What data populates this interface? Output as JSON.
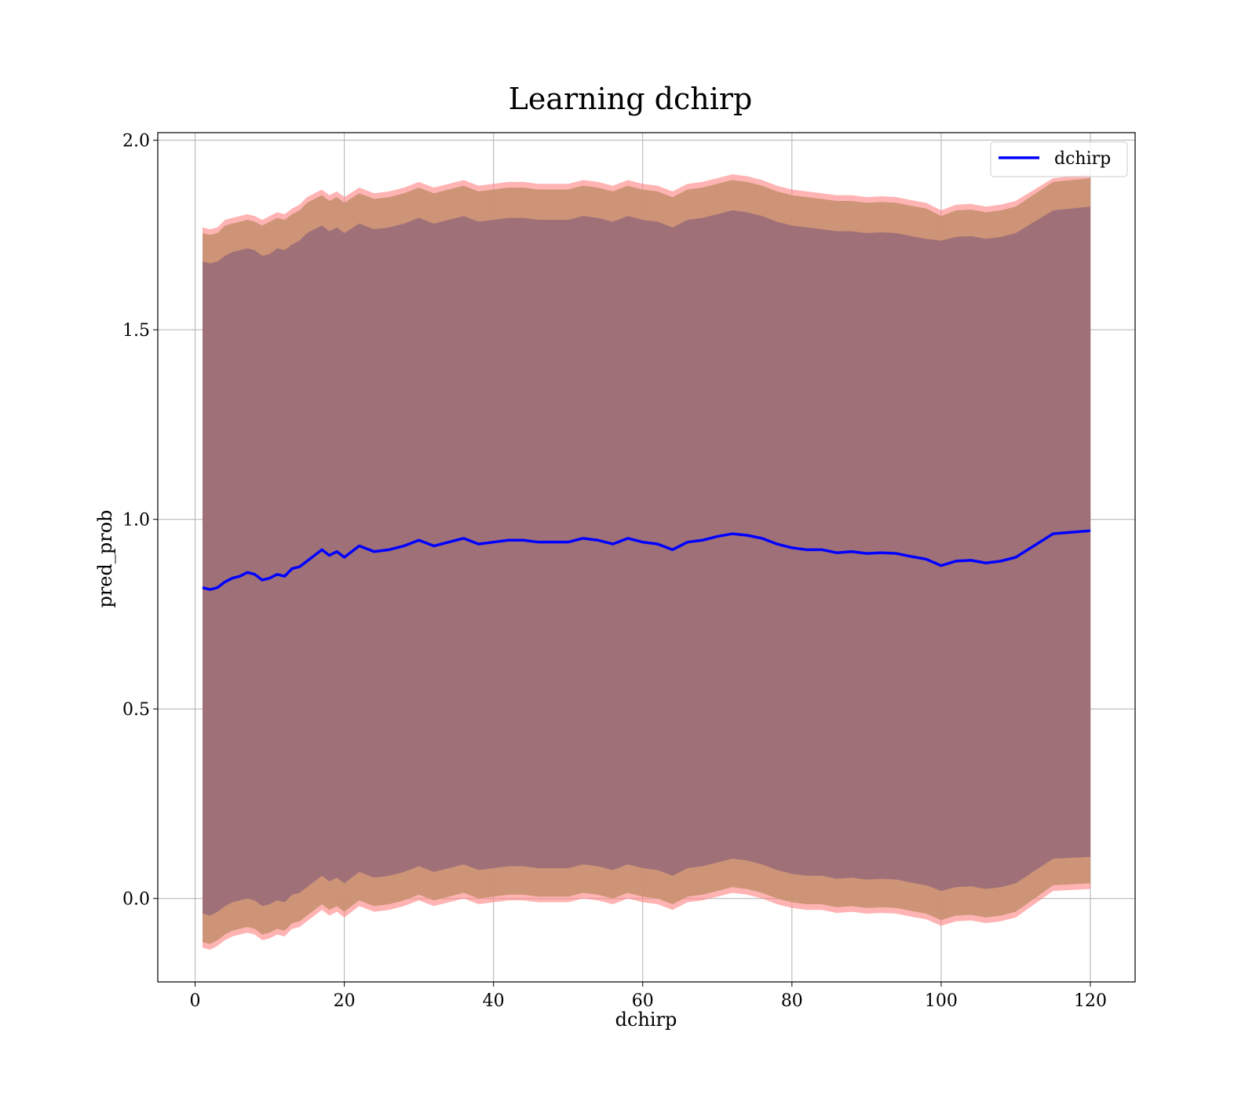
{
  "chart_data": {
    "type": "line",
    "title": "Learning dchirp",
    "xlabel": "dchirp",
    "ylabel": "pred_prob",
    "xlim": [
      -5,
      126
    ],
    "ylim": [
      -0.22,
      2.02
    ],
    "xticks": [
      0,
      20,
      40,
      60,
      80,
      100,
      120
    ],
    "xtick_labels": [
      "0",
      "20",
      "40",
      "60",
      "80",
      "100",
      "120"
    ],
    "yticks": [
      0.0,
      0.5,
      1.0,
      1.5,
      2.0
    ],
    "ytick_labels": [
      "0.0",
      "0.5",
      "1.0",
      "1.5",
      "2.0"
    ],
    "grid": true,
    "legend": {
      "position": "upper right",
      "entries": [
        "dchirp"
      ]
    },
    "colors": {
      "line": "#0000ff",
      "outer_band": "#ff8080",
      "middle_band": "#c89070",
      "inner_band": "#a07078"
    },
    "x": [
      1,
      2,
      3,
      4,
      5,
      6,
      7,
      8,
      9,
      10,
      11,
      12,
      13,
      14,
      15,
      16,
      17,
      18,
      19,
      20,
      22,
      24,
      26,
      28,
      30,
      32,
      34,
      36,
      38,
      40,
      42,
      44,
      46,
      48,
      50,
      52,
      54,
      56,
      58,
      60,
      62,
      64,
      66,
      68,
      70,
      72,
      74,
      76,
      78,
      80,
      82,
      84,
      86,
      88,
      90,
      92,
      94,
      96,
      98,
      100,
      102,
      104,
      106,
      108,
      110,
      115,
      120
    ],
    "series": [
      {
        "name": "dchirp",
        "role": "line",
        "values": [
          0.82,
          0.815,
          0.82,
          0.835,
          0.845,
          0.85,
          0.86,
          0.855,
          0.84,
          0.845,
          0.855,
          0.85,
          0.87,
          0.875,
          0.89,
          0.905,
          0.92,
          0.905,
          0.915,
          0.9,
          0.93,
          0.915,
          0.92,
          0.93,
          0.945,
          0.93,
          0.94,
          0.95,
          0.935,
          0.94,
          0.945,
          0.945,
          0.94,
          0.94,
          0.94,
          0.95,
          0.945,
          0.935,
          0.95,
          0.94,
          0.935,
          0.92,
          0.94,
          0.945,
          0.955,
          0.962,
          0.958,
          0.95,
          0.935,
          0.925,
          0.92,
          0.92,
          0.912,
          0.915,
          0.91,
          0.912,
          0.91,
          0.902,
          0.895,
          0.878,
          0.89,
          0.892,
          0.885,
          0.89,
          0.9,
          0.962,
          0.97
        ]
      }
    ],
    "bands": [
      {
        "role": "outer",
        "upper": [
          1.77,
          1.765,
          1.77,
          1.79,
          1.795,
          1.8,
          1.805,
          1.8,
          1.79,
          1.8,
          1.81,
          1.805,
          1.82,
          1.83,
          1.85,
          1.86,
          1.87,
          1.855,
          1.865,
          1.85,
          1.875,
          1.86,
          1.865,
          1.875,
          1.89,
          1.875,
          1.885,
          1.895,
          1.88,
          1.885,
          1.89,
          1.89,
          1.885,
          1.885,
          1.885,
          1.895,
          1.89,
          1.88,
          1.895,
          1.885,
          1.88,
          1.865,
          1.885,
          1.89,
          1.9,
          1.91,
          1.905,
          1.895,
          1.88,
          1.87,
          1.865,
          1.86,
          1.855,
          1.855,
          1.85,
          1.852,
          1.85,
          1.842,
          1.835,
          1.815,
          1.83,
          1.832,
          1.825,
          1.83,
          1.84,
          1.9,
          1.91
        ],
        "lower": [
          -0.13,
          -0.135,
          -0.125,
          -0.11,
          -0.1,
          -0.095,
          -0.09,
          -0.095,
          -0.11,
          -0.105,
          -0.095,
          -0.1,
          -0.08,
          -0.075,
          -0.06,
          -0.045,
          -0.03,
          -0.045,
          -0.035,
          -0.05,
          -0.02,
          -0.035,
          -0.03,
          -0.02,
          -0.005,
          -0.02,
          -0.01,
          0.0,
          -0.015,
          -0.01,
          -0.005,
          -0.005,
          -0.01,
          -0.01,
          -0.01,
          0.0,
          -0.005,
          -0.015,
          0.0,
          -0.01,
          -0.015,
          -0.03,
          -0.01,
          -0.005,
          0.005,
          0.015,
          0.01,
          0.0,
          -0.015,
          -0.025,
          -0.03,
          -0.03,
          -0.038,
          -0.035,
          -0.04,
          -0.038,
          -0.04,
          -0.048,
          -0.055,
          -0.072,
          -0.06,
          -0.058,
          -0.065,
          -0.06,
          -0.05,
          0.02,
          0.025
        ]
      },
      {
        "role": "middle",
        "upper": [
          1.755,
          1.75,
          1.755,
          1.775,
          1.78,
          1.785,
          1.79,
          1.785,
          1.775,
          1.785,
          1.795,
          1.79,
          1.805,
          1.815,
          1.835,
          1.845,
          1.855,
          1.84,
          1.85,
          1.835,
          1.86,
          1.845,
          1.85,
          1.86,
          1.875,
          1.86,
          1.87,
          1.88,
          1.865,
          1.87,
          1.875,
          1.875,
          1.87,
          1.87,
          1.87,
          1.88,
          1.875,
          1.865,
          1.88,
          1.87,
          1.865,
          1.85,
          1.87,
          1.875,
          1.885,
          1.895,
          1.89,
          1.88,
          1.865,
          1.855,
          1.85,
          1.845,
          1.84,
          1.84,
          1.835,
          1.837,
          1.835,
          1.827,
          1.82,
          1.8,
          1.815,
          1.817,
          1.81,
          1.815,
          1.825,
          1.89,
          1.9
        ],
        "lower": [
          -0.115,
          -0.12,
          -0.11,
          -0.095,
          -0.085,
          -0.08,
          -0.075,
          -0.08,
          -0.095,
          -0.09,
          -0.08,
          -0.085,
          -0.065,
          -0.06,
          -0.045,
          -0.03,
          -0.015,
          -0.03,
          -0.02,
          -0.035,
          -0.005,
          -0.02,
          -0.015,
          -0.005,
          0.01,
          -0.005,
          0.005,
          0.015,
          0.0,
          0.005,
          0.01,
          0.01,
          0.005,
          0.005,
          0.005,
          0.015,
          0.01,
          0.0,
          0.015,
          0.005,
          0.0,
          -0.015,
          0.005,
          0.01,
          0.02,
          0.03,
          0.025,
          0.015,
          0.0,
          -0.01,
          -0.015,
          -0.015,
          -0.023,
          -0.02,
          -0.025,
          -0.023,
          -0.025,
          -0.033,
          -0.04,
          -0.057,
          -0.045,
          -0.043,
          -0.05,
          -0.045,
          -0.035,
          0.035,
          0.04
        ]
      },
      {
        "role": "inner",
        "upper": [
          1.68,
          1.675,
          1.68,
          1.695,
          1.705,
          1.71,
          1.715,
          1.71,
          1.695,
          1.7,
          1.715,
          1.71,
          1.725,
          1.735,
          1.755,
          1.765,
          1.775,
          1.76,
          1.77,
          1.755,
          1.78,
          1.765,
          1.77,
          1.78,
          1.795,
          1.78,
          1.79,
          1.8,
          1.785,
          1.79,
          1.795,
          1.795,
          1.79,
          1.79,
          1.79,
          1.8,
          1.795,
          1.785,
          1.8,
          1.79,
          1.785,
          1.77,
          1.79,
          1.795,
          1.805,
          1.815,
          1.81,
          1.8,
          1.785,
          1.775,
          1.77,
          1.765,
          1.76,
          1.76,
          1.755,
          1.757,
          1.755,
          1.747,
          1.74,
          1.735,
          1.745,
          1.747,
          1.74,
          1.745,
          1.755,
          1.815,
          1.825
        ],
        "lower": [
          -0.04,
          -0.045,
          -0.035,
          -0.02,
          -0.01,
          -0.005,
          0.0,
          -0.005,
          -0.02,
          -0.015,
          -0.005,
          -0.01,
          0.01,
          0.015,
          0.03,
          0.045,
          0.06,
          0.045,
          0.055,
          0.04,
          0.07,
          0.055,
          0.06,
          0.07,
          0.085,
          0.07,
          0.08,
          0.09,
          0.075,
          0.08,
          0.085,
          0.085,
          0.08,
          0.08,
          0.08,
          0.09,
          0.085,
          0.075,
          0.09,
          0.08,
          0.075,
          0.06,
          0.08,
          0.085,
          0.095,
          0.105,
          0.1,
          0.09,
          0.075,
          0.065,
          0.06,
          0.06,
          0.052,
          0.055,
          0.05,
          0.052,
          0.05,
          0.042,
          0.035,
          0.02,
          0.03,
          0.032,
          0.025,
          0.03,
          0.04,
          0.105,
          0.11
        ]
      }
    ]
  }
}
